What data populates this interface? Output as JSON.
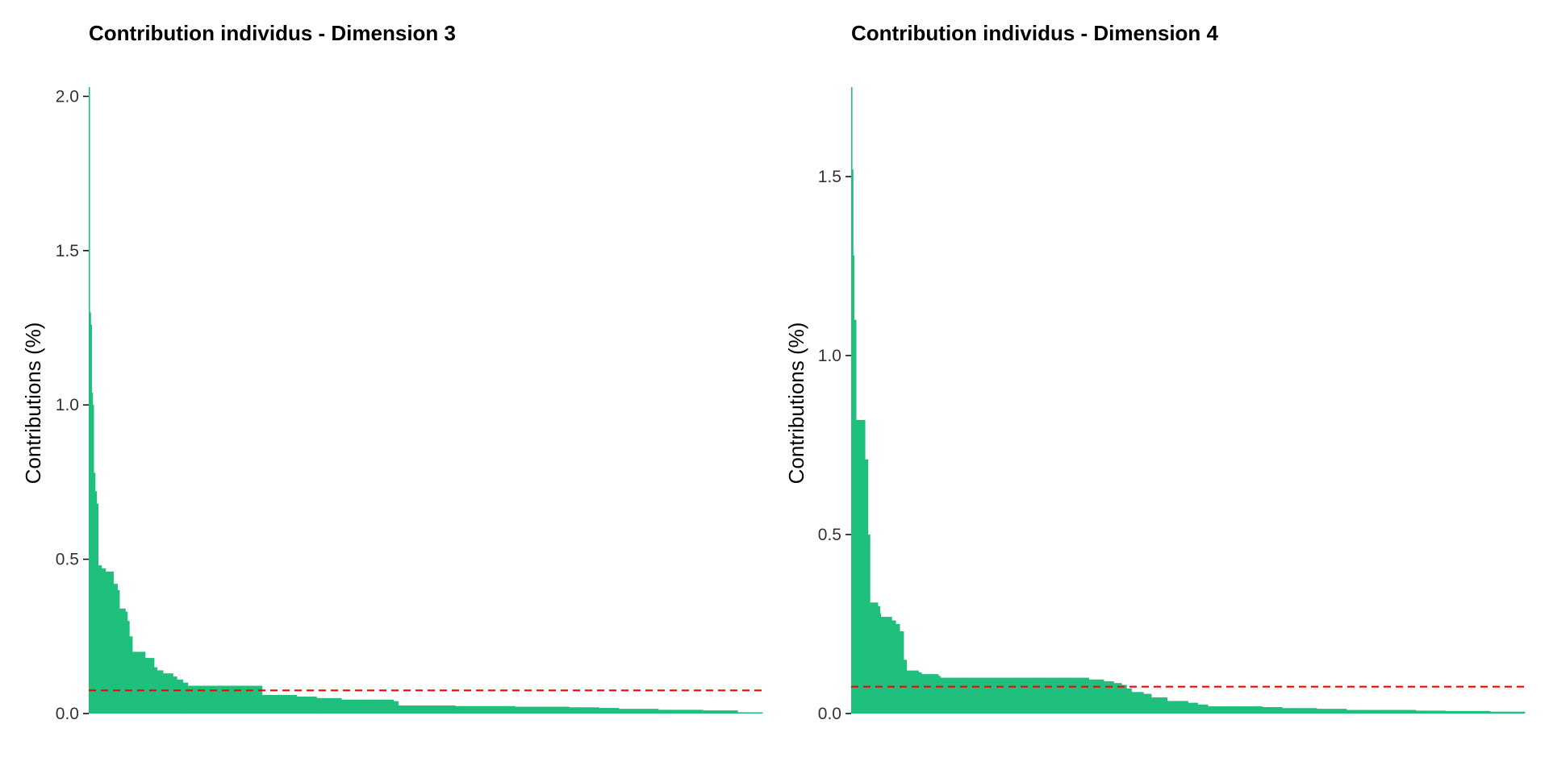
{
  "colors": {
    "bars": "#1fbf7c",
    "reference_line": "#ff0000",
    "axis": "#000000",
    "background": "#ffffff"
  },
  "chart_data": [
    {
      "type": "bar",
      "title": "Contribution individus - Dimension 3",
      "xlabel": "",
      "ylabel": "Contributions (%)",
      "ylim": [
        0,
        2.03
      ],
      "yticks": [
        0.0,
        0.5,
        1.0,
        1.5,
        2.0
      ],
      "ytick_labels": [
        "0.0",
        "0.5",
        "1.0",
        "1.5",
        "2.0"
      ],
      "grid": false,
      "legend": "none",
      "x_ticks_shown": false,
      "reference_line": {
        "value": 0.075,
        "style": "dashed"
      },
      "bar_count": 1360,
      "values_sorted_desc": [
        [
          0,
          2.03
        ],
        [
          2,
          1.3
        ],
        [
          4,
          1.26
        ],
        [
          6,
          1.04
        ],
        [
          8,
          1.0
        ],
        [
          10,
          0.78
        ],
        [
          13,
          0.72
        ],
        [
          16,
          0.68
        ],
        [
          19,
          0.48
        ],
        [
          26,
          0.47
        ],
        [
          34,
          0.46
        ],
        [
          50,
          0.42
        ],
        [
          58,
          0.4
        ],
        [
          62,
          0.34
        ],
        [
          74,
          0.33
        ],
        [
          78,
          0.3
        ],
        [
          82,
          0.25
        ],
        [
          88,
          0.2
        ],
        [
          114,
          0.18
        ],
        [
          132,
          0.15
        ],
        [
          138,
          0.14
        ],
        [
          150,
          0.13
        ],
        [
          170,
          0.12
        ],
        [
          178,
          0.11
        ],
        [
          190,
          0.1
        ],
        [
          200,
          0.09
        ],
        [
          350,
          0.06
        ],
        [
          420,
          0.055
        ],
        [
          460,
          0.05
        ],
        [
          510,
          0.045
        ],
        [
          615,
          0.04
        ],
        [
          625,
          0.026
        ],
        [
          740,
          0.024
        ],
        [
          860,
          0.022
        ],
        [
          970,
          0.02
        ],
        [
          1030,
          0.018
        ],
        [
          1070,
          0.015
        ],
        [
          1150,
          0.012
        ],
        [
          1240,
          0.01
        ],
        [
          1310,
          0.004
        ],
        [
          1360,
          0.002
        ]
      ]
    },
    {
      "type": "bar",
      "title": "Contribution individus - Dimension 4",
      "xlabel": "",
      "ylabel": "Contributions (%)",
      "ylim": [
        0,
        1.75
      ],
      "yticks": [
        0.0,
        0.5,
        1.0,
        1.5
      ],
      "ytick_labels": [
        "0.0",
        "0.5",
        "1.0",
        "1.5"
      ],
      "grid": false,
      "legend": "none",
      "x_ticks_shown": false,
      "reference_line": {
        "value": 0.075,
        "style": "dashed"
      },
      "bar_count": 1360,
      "values_sorted_desc": [
        [
          0,
          1.75
        ],
        [
          2,
          1.52
        ],
        [
          4,
          1.28
        ],
        [
          6,
          1.1
        ],
        [
          10,
          0.82
        ],
        [
          28,
          0.71
        ],
        [
          34,
          0.5
        ],
        [
          38,
          0.31
        ],
        [
          54,
          0.3
        ],
        [
          58,
          0.28
        ],
        [
          60,
          0.27
        ],
        [
          82,
          0.26
        ],
        [
          90,
          0.25
        ],
        [
          98,
          0.23
        ],
        [
          106,
          0.15
        ],
        [
          112,
          0.12
        ],
        [
          136,
          0.115
        ],
        [
          142,
          0.11
        ],
        [
          176,
          0.105
        ],
        [
          180,
          0.1
        ],
        [
          250,
          0.1
        ],
        [
          480,
          0.095
        ],
        [
          510,
          0.09
        ],
        [
          530,
          0.085
        ],
        [
          546,
          0.08
        ],
        [
          556,
          0.07
        ],
        [
          566,
          0.06
        ],
        [
          590,
          0.055
        ],
        [
          606,
          0.045
        ],
        [
          638,
          0.035
        ],
        [
          680,
          0.03
        ],
        [
          700,
          0.025
        ],
        [
          720,
          0.02
        ],
        [
          830,
          0.018
        ],
        [
          870,
          0.015
        ],
        [
          940,
          0.013
        ],
        [
          1000,
          0.01
        ],
        [
          1140,
          0.008
        ],
        [
          1200,
          0.007
        ],
        [
          1290,
          0.005
        ],
        [
          1360,
          0.004
        ]
      ]
    }
  ]
}
